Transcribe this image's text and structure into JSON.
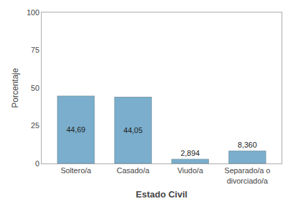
{
  "chart_data": {
    "type": "bar",
    "categories": [
      "Soltero/a",
      "Casado/a",
      "Viudo/a",
      "Separado/a o\ndivorciado/a"
    ],
    "values": [
      44.69,
      44.05,
      2.894,
      8.36
    ],
    "value_labels": [
      "44,69",
      "44,05",
      "2,894",
      "8,360"
    ],
    "data_labels": true,
    "color": "#7aaecc",
    "xlabel": "Estado Civil",
    "ylabel": "Porcentaje",
    "ylim": [
      0,
      100
    ],
    "yticks": [
      0,
      25,
      50,
      75,
      100
    ],
    "grid": false
  }
}
